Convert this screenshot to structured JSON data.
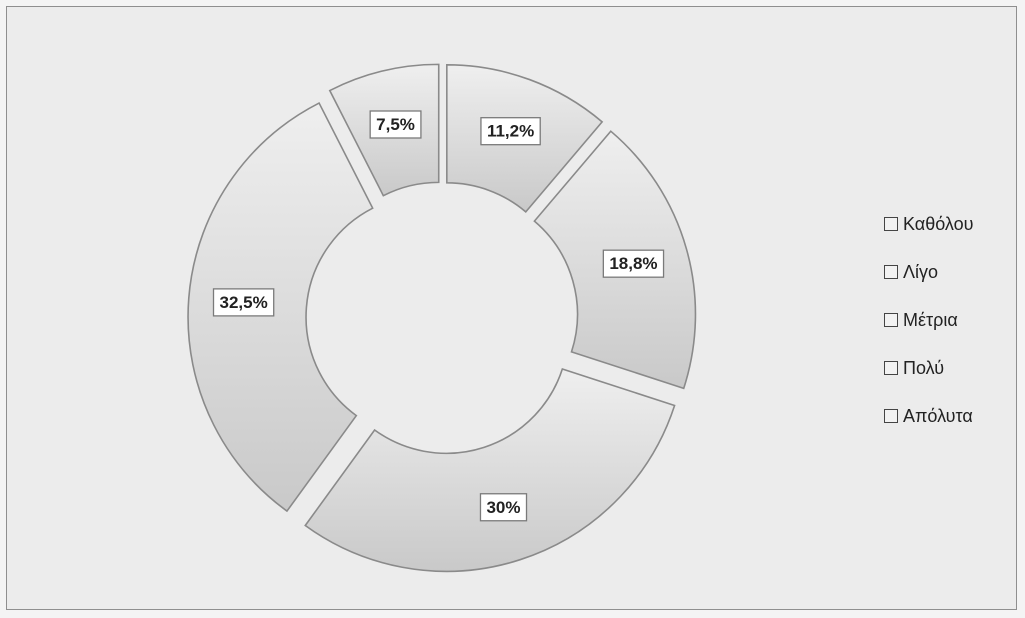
{
  "chart_data": {
    "type": "pie",
    "variant": "exploded-doughnut",
    "categories": [
      "Καθόλου",
      "Λίγο",
      "Μέτρια",
      "Πολύ",
      "Απόλυτα"
    ],
    "values": [
      11.2,
      18.8,
      30,
      32.5,
      7.5
    ],
    "data_labels": [
      "11,2%",
      "18,8%",
      "30%",
      "32,5%",
      "7,5%"
    ],
    "unit": "%",
    "legend_position": "right",
    "colors": {
      "slice_fill": "#e4e4e4",
      "slice_shade": "#cbcbcb",
      "slice_edge": "#8a8a8a",
      "background": "#ececec"
    }
  }
}
